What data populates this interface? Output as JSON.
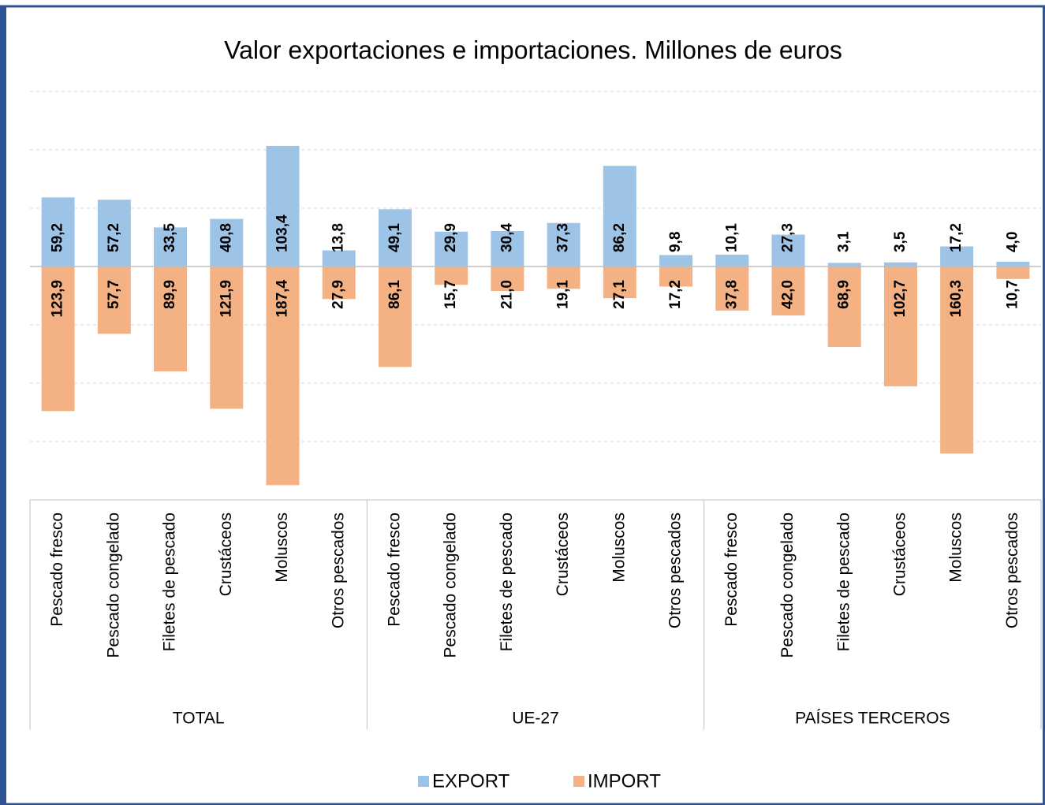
{
  "chart_data": {
    "type": "bar",
    "title": "Valor exportaciones e importaciones. Millones de euros",
    "groups": [
      {
        "name": "TOTAL",
        "categories": [
          "Pescado fresco",
          "Pescado congelado",
          "Filetes de pescado",
          "Crustáceos",
          "Moluscos",
          "Otros pescados"
        ]
      },
      {
        "name": "UE-27",
        "categories": [
          "Pescado fresco",
          "Pescado congelado",
          "Filetes de pescado",
          "Crustáceos",
          "Moluscos",
          "Otros pescados"
        ]
      },
      {
        "name": "PAÍSES TERCEROS",
        "categories": [
          "Pescado fresco",
          "Pescado congelado",
          "Filetes de pescado",
          "Crustáceos",
          "Moluscos",
          "Otros pescados"
        ]
      }
    ],
    "series": [
      {
        "name": "EXPORT",
        "color": "#9dc3e6",
        "values": [
          59.2,
          57.2,
          33.5,
          40.8,
          103.4,
          13.8,
          49.1,
          29.9,
          30.4,
          37.3,
          86.2,
          9.8,
          10.1,
          27.3,
          3.1,
          3.5,
          17.2,
          4.0
        ],
        "value_labels": [
          "59,2",
          "57,2",
          "33,5",
          "40,8",
          "103,4",
          "13,8",
          "49,1",
          "29,9",
          "30,4",
          "37,3",
          "86,2",
          "9,8",
          "10,1",
          "27,3",
          "3,1",
          "3,5",
          "17,2",
          "4,0"
        ]
      },
      {
        "name": "IMPORT",
        "color": "#f4b183",
        "values": [
          -123.9,
          -57.7,
          -89.9,
          -121.9,
          -187.4,
          -27.9,
          -86.1,
          -15.7,
          -21.0,
          -19.1,
          -27.1,
          -17.2,
          -37.8,
          -42.0,
          -68.9,
          -102.7,
          -160.3,
          -10.7
        ],
        "value_labels": [
          "123,9",
          "57,7",
          "89,9",
          "121,9",
          "187,4",
          "27,9",
          "86,1",
          "15,7",
          "21,0",
          "19,1",
          "27,1",
          "17,2",
          "37,8",
          "42,0",
          "68,9",
          "102,7",
          "160,3",
          "10,7"
        ]
      }
    ],
    "ylim": [
      -200,
      150
    ],
    "yticks": [
      -200,
      -150,
      -100,
      -50,
      0,
      50,
      100,
      150
    ],
    "grid": true
  }
}
